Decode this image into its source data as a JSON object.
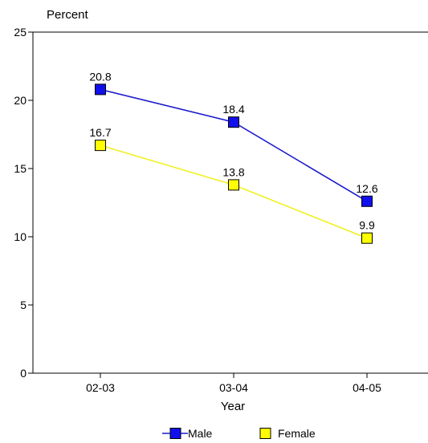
{
  "chart_data": {
    "type": "line",
    "title": "",
    "ylabel": "Percent",
    "xlabel": "Year",
    "categories": [
      "02-03",
      "03-04",
      "04-05"
    ],
    "ylim": [
      0,
      25
    ],
    "yticks": [
      0,
      5,
      10,
      15,
      20,
      25
    ],
    "grid": false,
    "legend_position": "bottom",
    "series": [
      {
        "name": "Male",
        "values": [
          20.8,
          18.4,
          12.6
        ],
        "labels": [
          "20.8",
          "18.4",
          "12.6"
        ],
        "line_color": "#1a1acc",
        "marker_color": "#1010ee"
      },
      {
        "name": "Female",
        "values": [
          16.7,
          13.8,
          9.9
        ],
        "labels": [
          "16.7",
          "13.8",
          "9.9"
        ],
        "line_color": "#f0f020",
        "marker_color": "#ffff00"
      }
    ]
  }
}
